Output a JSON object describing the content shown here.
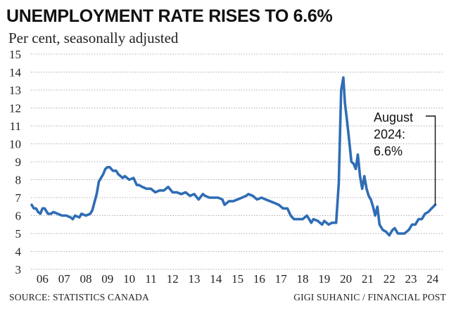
{
  "chart_data": {
    "type": "line",
    "title": "UNEMPLOYMENT RATE RISES TO 6.6%",
    "subtitle": "Per cent, seasonally adjusted",
    "ylim": [
      3,
      15
    ],
    "yticks": [
      "3",
      "4",
      "5",
      "6",
      "7",
      "8",
      "9",
      "10",
      "11",
      "12",
      "13",
      "14",
      "15"
    ],
    "xtick_labels": [
      "06",
      "07",
      "08",
      "09",
      "10",
      "11",
      "12",
      "13",
      "14",
      "15",
      "16",
      "17",
      "18",
      "19",
      "20",
      "21",
      "22",
      "23",
      "24"
    ],
    "xlim": [
      2006.0,
      2024.75
    ],
    "grid": "horizontal dotted",
    "line_color": "#2f6db5",
    "series": [
      {
        "name": "Unemployment rate",
        "points": [
          [
            2006.0,
            6.6
          ],
          [
            2006.1,
            6.4
          ],
          [
            2006.2,
            6.4
          ],
          [
            2006.3,
            6.2
          ],
          [
            2006.4,
            6.1
          ],
          [
            2006.5,
            6.4
          ],
          [
            2006.6,
            6.4
          ],
          [
            2006.75,
            6.1
          ],
          [
            2006.9,
            6.1
          ],
          [
            2007.0,
            6.2
          ],
          [
            2007.2,
            6.1
          ],
          [
            2007.4,
            6.0
          ],
          [
            2007.6,
            6.0
          ],
          [
            2007.8,
            5.9
          ],
          [
            2007.9,
            5.8
          ],
          [
            2008.0,
            6.0
          ],
          [
            2008.2,
            5.9
          ],
          [
            2008.3,
            6.1
          ],
          [
            2008.5,
            6.0
          ],
          [
            2008.7,
            6.1
          ],
          [
            2008.8,
            6.3
          ],
          [
            2009.0,
            7.2
          ],
          [
            2009.1,
            7.9
          ],
          [
            2009.3,
            8.3
          ],
          [
            2009.4,
            8.6
          ],
          [
            2009.5,
            8.7
          ],
          [
            2009.6,
            8.7
          ],
          [
            2009.75,
            8.5
          ],
          [
            2009.9,
            8.5
          ],
          [
            2010.0,
            8.3
          ],
          [
            2010.2,
            8.1
          ],
          [
            2010.3,
            8.2
          ],
          [
            2010.5,
            8.0
          ],
          [
            2010.7,
            8.1
          ],
          [
            2010.85,
            7.7
          ],
          [
            2010.95,
            7.7
          ],
          [
            2011.1,
            7.6
          ],
          [
            2011.3,
            7.5
          ],
          [
            2011.5,
            7.5
          ],
          [
            2011.7,
            7.3
          ],
          [
            2011.9,
            7.4
          ],
          [
            2012.1,
            7.4
          ],
          [
            2012.3,
            7.6
          ],
          [
            2012.5,
            7.3
          ],
          [
            2012.7,
            7.3
          ],
          [
            2012.9,
            7.2
          ],
          [
            2013.1,
            7.3
          ],
          [
            2013.3,
            7.1
          ],
          [
            2013.5,
            7.2
          ],
          [
            2013.7,
            6.9
          ],
          [
            2013.9,
            7.2
          ],
          [
            2014.0,
            7.1
          ],
          [
            2014.2,
            7.0
          ],
          [
            2014.4,
            7.0
          ],
          [
            2014.6,
            7.0
          ],
          [
            2014.8,
            6.9
          ],
          [
            2014.9,
            6.6
          ],
          [
            2015.1,
            6.8
          ],
          [
            2015.3,
            6.8
          ],
          [
            2015.5,
            6.9
          ],
          [
            2015.7,
            7.0
          ],
          [
            2015.9,
            7.1
          ],
          [
            2016.0,
            7.2
          ],
          [
            2016.2,
            7.1
          ],
          [
            2016.4,
            6.9
          ],
          [
            2016.6,
            7.0
          ],
          [
            2016.8,
            6.9
          ],
          [
            2017.0,
            6.8
          ],
          [
            2017.2,
            6.7
          ],
          [
            2017.4,
            6.6
          ],
          [
            2017.6,
            6.4
          ],
          [
            2017.8,
            6.4
          ],
          [
            2017.95,
            6.0
          ],
          [
            2018.1,
            5.8
          ],
          [
            2018.3,
            5.8
          ],
          [
            2018.5,
            5.8
          ],
          [
            2018.7,
            6.0
          ],
          [
            2018.9,
            5.6
          ],
          [
            2019.0,
            5.8
          ],
          [
            2019.2,
            5.7
          ],
          [
            2019.4,
            5.5
          ],
          [
            2019.5,
            5.7
          ],
          [
            2019.7,
            5.5
          ],
          [
            2019.85,
            5.6
          ],
          [
            2019.95,
            5.6
          ],
          [
            2020.05,
            5.6
          ],
          [
            2020.17,
            7.8
          ],
          [
            2020.28,
            13.0
          ],
          [
            2020.38,
            13.7
          ],
          [
            2020.45,
            12.3
          ],
          [
            2020.55,
            11.3
          ],
          [
            2020.65,
            10.2
          ],
          [
            2020.75,
            9.0
          ],
          [
            2020.85,
            8.9
          ],
          [
            2020.95,
            8.6
          ],
          [
            2021.05,
            9.4
          ],
          [
            2021.15,
            8.2
          ],
          [
            2021.25,
            7.5
          ],
          [
            2021.35,
            8.2
          ],
          [
            2021.45,
            7.5
          ],
          [
            2021.55,
            7.1
          ],
          [
            2021.65,
            6.9
          ],
          [
            2021.75,
            6.5
          ],
          [
            2021.85,
            6.0
          ],
          [
            2021.95,
            6.5
          ],
          [
            2022.05,
            5.5
          ],
          [
            2022.2,
            5.2
          ],
          [
            2022.35,
            5.1
          ],
          [
            2022.5,
            4.9
          ],
          [
            2022.65,
            5.2
          ],
          [
            2022.75,
            5.3
          ],
          [
            2022.9,
            5.0
          ],
          [
            2023.0,
            5.0
          ],
          [
            2023.2,
            5.0
          ],
          [
            2023.4,
            5.2
          ],
          [
            2023.55,
            5.5
          ],
          [
            2023.7,
            5.5
          ],
          [
            2023.85,
            5.8
          ],
          [
            2024.0,
            5.8
          ],
          [
            2024.15,
            6.1
          ],
          [
            2024.3,
            6.2
          ],
          [
            2024.45,
            6.4
          ],
          [
            2024.62,
            6.6
          ]
        ]
      }
    ],
    "annotation": {
      "lines": [
        "August",
        "2024:",
        "6.6%"
      ]
    }
  },
  "footer": {
    "source": "SOURCE: STATISTICS CANADA",
    "credit": "GIGI SUHANIC / FINANCIAL POST"
  }
}
